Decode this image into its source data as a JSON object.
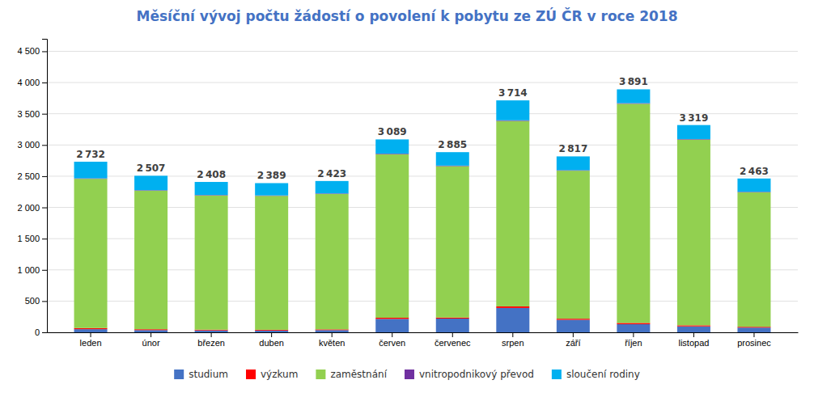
{
  "chart_data": {
    "type": "bar",
    "stacked": true,
    "title": "Měsíční vývoj počtu žádostí o povolení k pobytu ze ZÚ ČR v roce 2018",
    "categories": [
      "leden",
      "únor",
      "březen",
      "duben",
      "květen",
      "červen",
      "červenec",
      "srpen",
      "září",
      "říjen",
      "listopad",
      "prosinec"
    ],
    "series": [
      {
        "name": "studium",
        "color": "#4472C4",
        "values": [
          50,
          35,
          30,
          28,
          35,
          215,
          220,
          390,
          200,
          130,
          95,
          75
        ]
      },
      {
        "name": "výzkum",
        "color": "#FF0000",
        "values": [
          18,
          14,
          12,
          12,
          12,
          18,
          16,
          25,
          18,
          20,
          17,
          13
        ]
      },
      {
        "name": "zaměstnání",
        "color": "#92D050",
        "values": [
          2390,
          2220,
          2150,
          2145,
          2170,
          2620,
          2425,
          2970,
          2370,
          3510,
          2975,
          2155
        ]
      },
      {
        "name": "vnitropodnikový převod",
        "color": "#7030A0",
        "values": [
          8,
          7,
          7,
          7,
          7,
          8,
          8,
          10,
          8,
          10,
          8,
          7
        ]
      },
      {
        "name": "sloučení rodiny",
        "color": "#00B0F0",
        "values": [
          266,
          231,
          209,
          197,
          199,
          228,
          216,
          319,
          221,
          221,
          224,
          213
        ]
      }
    ],
    "totals": [
      2732,
      2507,
      2408,
      2389,
      2423,
      3089,
      2885,
      3714,
      2817,
      3891,
      3319,
      2463
    ],
    "total_labels": [
      "2 732",
      "2 507",
      "2 408",
      "2 389",
      "2 423",
      "3 089",
      "2 885",
      "3 714",
      "2 817",
      "3 891",
      "3 319",
      "2 463"
    ],
    "ylim": [
      0,
      4700
    ],
    "yticks": [
      0,
      500,
      {
        "value": 1000,
        "label": "1 000"
      },
      {
        "value": 1500,
        "label": "1 500"
      },
      {
        "value": 2000,
        "label": "2 000"
      },
      {
        "value": 2500,
        "label": "2 500"
      },
      {
        "value": 3000,
        "label": "3 000"
      },
      {
        "value": 3500,
        "label": "3 500"
      },
      {
        "value": 4000,
        "label": "4 000"
      },
      {
        "value": 4500,
        "label": "4 500"
      }
    ],
    "grid": true,
    "legend": "bottom"
  }
}
